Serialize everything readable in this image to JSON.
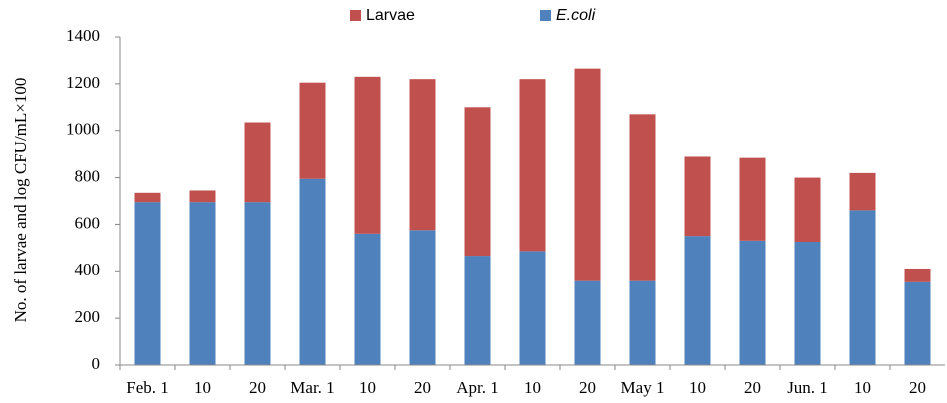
{
  "chart_data": {
    "type": "stacked_bar",
    "y_label": "No. of larvae and log CFU/mL×100",
    "categories": [
      "Feb. 1",
      "10",
      "20",
      "Mar. 1",
      "10",
      "20",
      "Apr. 1",
      "10",
      "20",
      "May 1",
      "10",
      "20",
      "Jun. 1",
      "10",
      "20"
    ],
    "series": [
      {
        "name": "E.coli",
        "color": "#4f81bd",
        "values": [
          695,
          695,
          695,
          795,
          560,
          575,
          465,
          485,
          360,
          360,
          550,
          530,
          525,
          660,
          355
        ]
      },
      {
        "name": "Larvae",
        "color": "#c0504d",
        "values": [
          40,
          50,
          340,
          410,
          670,
          645,
          635,
          735,
          905,
          710,
          340,
          355,
          275,
          160,
          55
        ]
      }
    ],
    "ylim": [
      0,
      1400
    ],
    "yticks": [
      0,
      200,
      400,
      600,
      800,
      1000,
      1200,
      1400
    ],
    "grid": false
  }
}
